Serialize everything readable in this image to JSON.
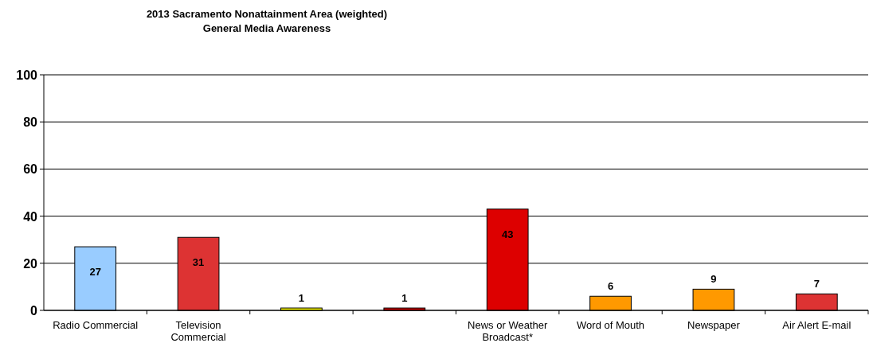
{
  "chart_data": {
    "type": "bar",
    "title": "2013 Sacramento Nonattainment Area (weighted)",
    "subtitle": "General Media Awareness",
    "categories": [
      "Radio Commercial",
      "Television Commercial",
      null,
      null,
      "News or Weather Broadcast*",
      "Word of Mouth",
      "Newspaper",
      "Air Alert E-mail"
    ],
    "values": [
      27,
      31,
      1,
      1,
      43,
      6,
      9,
      7
    ],
    "colors": [
      "#99ccff",
      "#dd3333",
      "#ffff00",
      "#cc0000",
      "#dd0000",
      "#ff9900",
      "#ff9900",
      "#dd3333"
    ],
    "ylim": [
      0,
      100
    ],
    "yticks": [
      0,
      20,
      40,
      60,
      80,
      100
    ],
    "grid": "y",
    "data_labels": true
  }
}
